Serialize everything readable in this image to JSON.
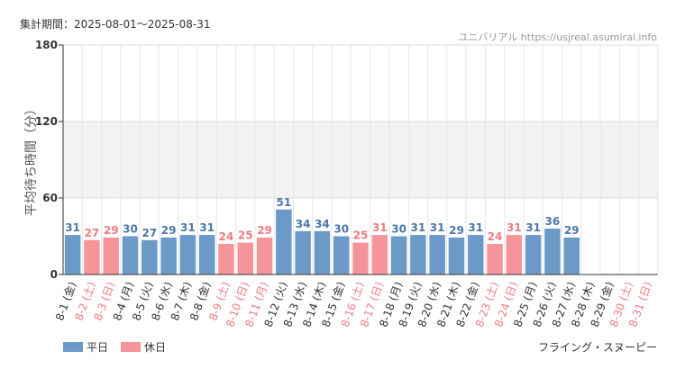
{
  "header": {
    "period": "集計期間：2025-08-01～2025-08-31",
    "site": "ユニバリアル https://usjreal.asumirai.info"
  },
  "footer": {
    "attraction": "フライング・スヌーピー"
  },
  "legend": [
    {
      "label": "平日",
      "color": "#6b9ac8"
    },
    {
      "label": "休日",
      "color": "#f5959a"
    }
  ],
  "chart_data": {
    "type": "bar",
    "ylabel": "平均待ち時間（分）",
    "ylim": [
      0,
      180
    ],
    "yticks": [
      "0",
      "60",
      "120",
      "180"
    ],
    "grid": true,
    "legend_position": "bottom-left",
    "categories": [
      "8-1 (金)",
      "8-2 (土)",
      "8-3 (日)",
      "8-4 (月)",
      "8-5 (火)",
      "8-6 (水)",
      "8-7 (木)",
      "8-8 (金)",
      "8-9 (土)",
      "8-10 (日)",
      "8-11 (月)",
      "8-12 (火)",
      "8-13 (水)",
      "8-14 (木)",
      "8-15 (金)",
      "8-16 (土)",
      "8-17 (日)",
      "8-18 (月)",
      "8-19 (火)",
      "8-20 (水)",
      "8-21 (木)",
      "8-22 (金)",
      "8-23 (土)",
      "8-24 (日)",
      "8-25 (月)",
      "8-26 (火)",
      "8-27 (水)",
      "8-28 (木)",
      "8-29 (金)",
      "8-30 (土)",
      "8-31 (日)"
    ],
    "day_type": [
      "平日",
      "休日",
      "休日",
      "平日",
      "平日",
      "平日",
      "平日",
      "平日",
      "休日",
      "休日",
      "休日",
      "平日",
      "平日",
      "平日",
      "平日",
      "休日",
      "休日",
      "平日",
      "平日",
      "平日",
      "平日",
      "平日",
      "休日",
      "休日",
      "平日",
      "平日",
      "平日",
      "平日",
      "平日",
      "休日",
      "休日"
    ],
    "values": [
      31,
      27,
      29,
      30,
      27,
      29,
      31,
      31,
      24,
      25,
      29,
      51,
      34,
      34,
      30,
      25,
      31,
      30,
      31,
      31,
      29,
      31,
      24,
      31,
      31,
      36,
      29,
      null,
      null,
      null,
      null
    ]
  }
}
